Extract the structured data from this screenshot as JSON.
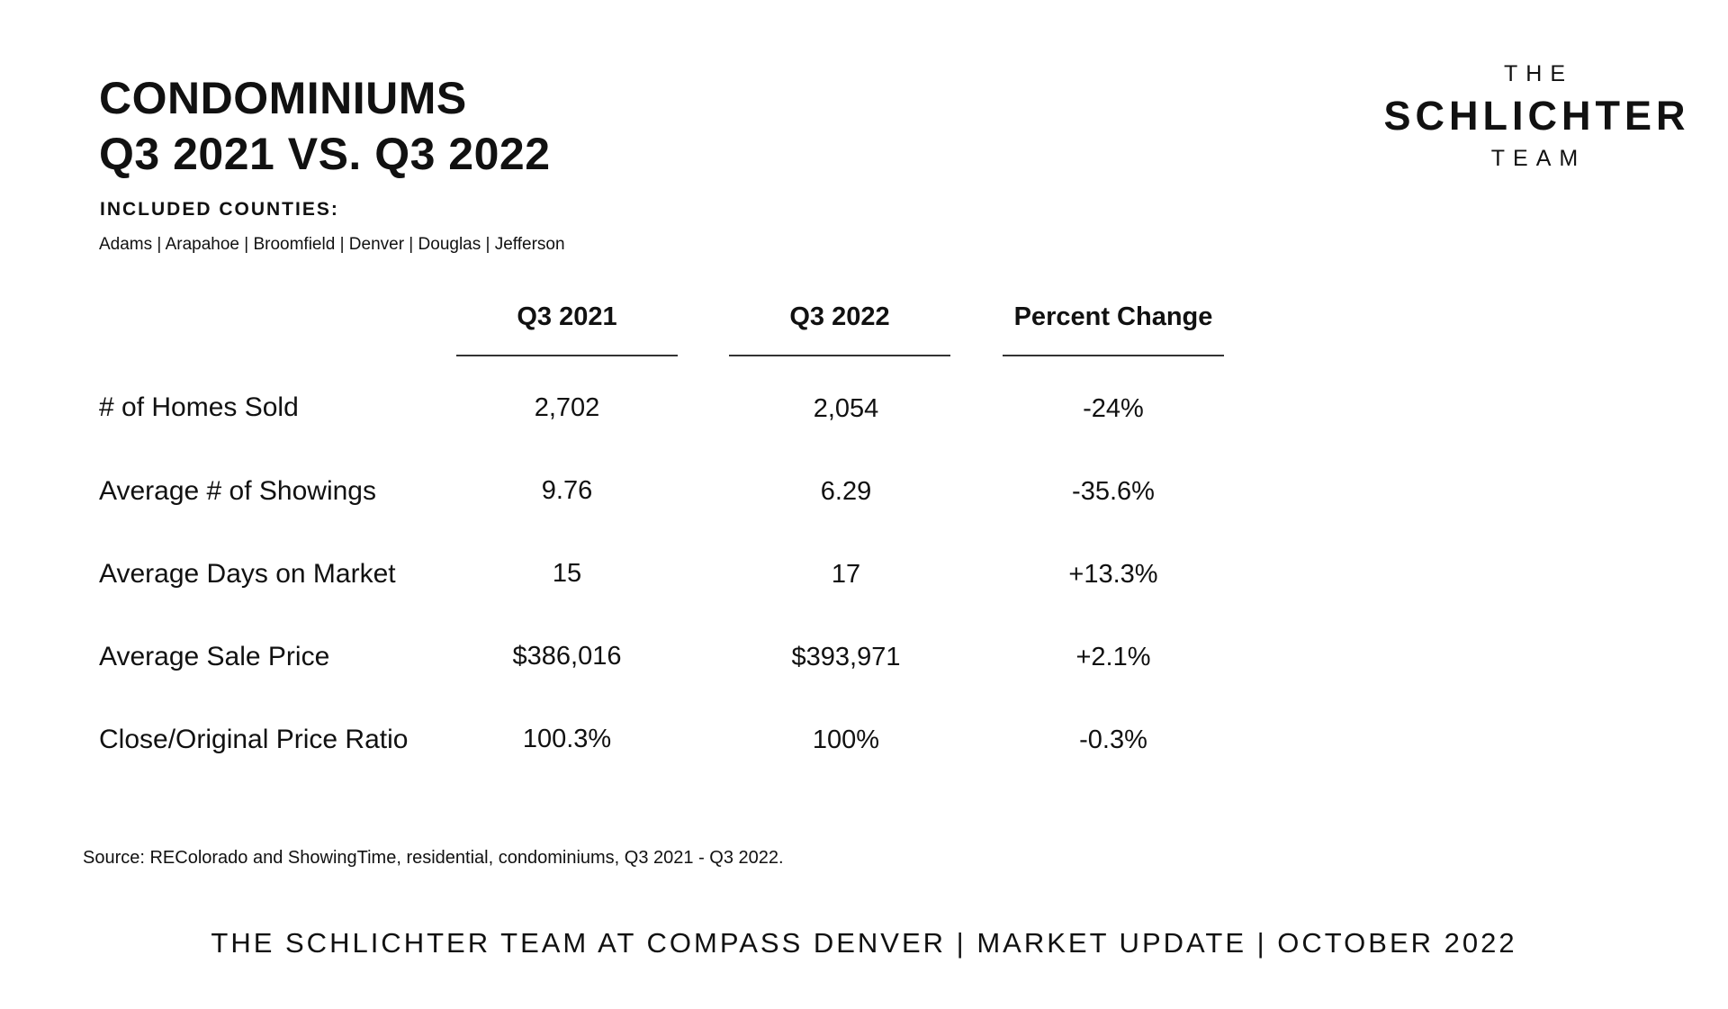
{
  "header": {
    "title_line1": "CONDOMINIUMS",
    "title_line2": "Q3 2021 VS. Q3 2022",
    "counties_label": "INCLUDED COUNTIES:",
    "counties_list": "Adams | Arapahoe | Broomfield | Denver | Douglas | Jefferson"
  },
  "logo": {
    "top": "THE",
    "middle": "SCHLICHTER",
    "bottom": "TEAM"
  },
  "table": {
    "columns": [
      "Q3 2021",
      "Q3 2022",
      "Percent Change"
    ],
    "rows": [
      {
        "label": "# of Homes Sold",
        "values": [
          "2,702",
          "2,054",
          "-24%"
        ]
      },
      {
        "label": "Average # of Showings",
        "values": [
          "9.76",
          "6.29",
          "-35.6%"
        ]
      },
      {
        "label": "Average Days on Market",
        "values": [
          "15",
          "17",
          "+13.3%"
        ]
      },
      {
        "label": "Average Sale Price",
        "values": [
          "$386,016",
          "$393,971",
          "+2.1%"
        ]
      },
      {
        "label": "Close/Original Price Ratio",
        "values": [
          "100.3%",
          "100%",
          "-0.3%"
        ]
      }
    ]
  },
  "source": "Source: REColorado and ShowingTime, residential, condominiums, Q3 2021 - Q3 2022.",
  "footer": "THE SCHLICHTER TEAM AT COMPASS DENVER | MARKET UPDATE | OCTOBER 2022"
}
